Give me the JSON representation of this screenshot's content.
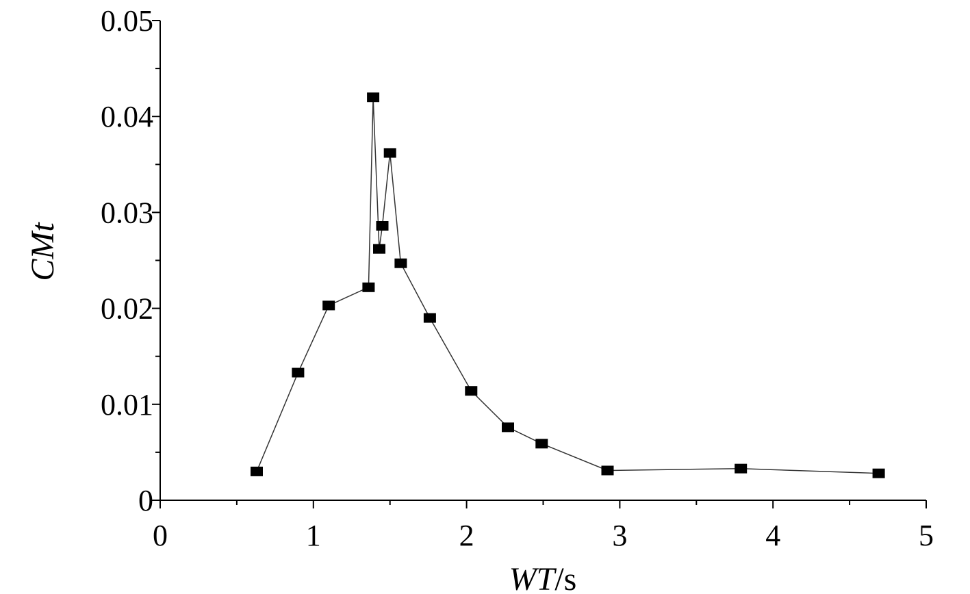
{
  "chart_data": {
    "type": "line",
    "xlabel_main": "WT",
    "xlabel_unit": "/s",
    "ylabel": "CMt",
    "xlim": [
      0,
      5
    ],
    "ylim": [
      0,
      0.05
    ],
    "x_ticks": [
      "0",
      "1",
      "2",
      "3",
      "4",
      "5"
    ],
    "y_ticks": [
      "0",
      "0.01",
      "0.02",
      "0.03",
      "0.04",
      "0.05"
    ],
    "grid": false,
    "marker": "square",
    "series": [
      {
        "points": [
          [
            0.63,
            0.003
          ],
          [
            0.9,
            0.0133
          ],
          [
            1.1,
            0.0203
          ],
          [
            1.36,
            0.0222
          ],
          [
            1.39,
            0.042
          ],
          [
            1.43,
            0.0262
          ],
          [
            1.45,
            0.0286
          ],
          [
            1.5,
            0.0362
          ],
          [
            1.57,
            0.0247
          ],
          [
            1.76,
            0.019
          ],
          [
            2.03,
            0.0114
          ],
          [
            2.27,
            0.0076
          ],
          [
            2.49,
            0.0059
          ],
          [
            2.92,
            0.0031
          ],
          [
            3.79,
            0.0033
          ],
          [
            4.69,
            0.0028
          ]
        ]
      }
    ]
  }
}
